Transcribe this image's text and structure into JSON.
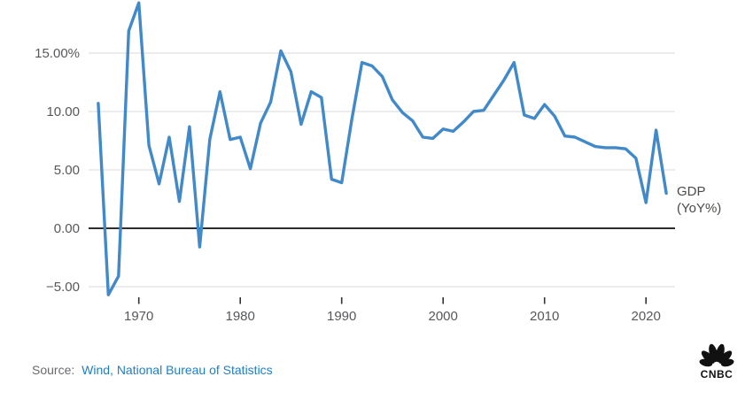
{
  "chart_data": {
    "type": "line",
    "title": "",
    "xlabel": "",
    "ylabel": "",
    "xlim": [
      1966,
      2022
    ],
    "ylim": [
      -6.5,
      19.5
    ],
    "grid": true,
    "legend_position": "right-of-line-end",
    "series_label_line1": "GDP",
    "series_label_line2": "(YoY%)",
    "x_ticks": [
      1970,
      1980,
      1990,
      2000,
      2010,
      2020
    ],
    "y_ticks": [
      {
        "value": 15,
        "label": "15.00%"
      },
      {
        "value": 10,
        "label": "10.00"
      },
      {
        "value": 5,
        "label": "5.00"
      },
      {
        "value": 0,
        "label": "0.00"
      },
      {
        "value": -5,
        "label": "−5.00"
      }
    ],
    "series": [
      {
        "name": "GDP (YoY%)",
        "x": [
          1966,
          1967,
          1968,
          1969,
          1970,
          1971,
          1972,
          1973,
          1974,
          1975,
          1976,
          1977,
          1978,
          1979,
          1980,
          1981,
          1982,
          1983,
          1984,
          1985,
          1986,
          1987,
          1988,
          1989,
          1990,
          1991,
          1992,
          1993,
          1994,
          1995,
          1996,
          1997,
          1998,
          1999,
          2000,
          2001,
          2002,
          2003,
          2004,
          2005,
          2006,
          2007,
          2008,
          2009,
          2010,
          2011,
          2012,
          2013,
          2014,
          2015,
          2016,
          2017,
          2018,
          2019,
          2020,
          2021,
          2022
        ],
        "values": [
          10.7,
          -5.7,
          -4.1,
          16.9,
          19.3,
          7.1,
          3.8,
          7.8,
          2.3,
          8.7,
          -1.6,
          7.6,
          11.7,
          7.6,
          7.8,
          5.1,
          9.0,
          10.8,
          15.2,
          13.4,
          8.9,
          11.7,
          11.2,
          4.2,
          3.9,
          9.3,
          14.2,
          13.9,
          13.0,
          11.0,
          9.9,
          9.2,
          7.8,
          7.7,
          8.5,
          8.3,
          9.1,
          10.0,
          10.1,
          11.4,
          12.7,
          14.2,
          9.7,
          9.4,
          10.6,
          9.6,
          7.9,
          7.8,
          7.4,
          7.0,
          6.9,
          6.9,
          6.8,
          6.0,
          2.2,
          8.4,
          3.0
        ]
      }
    ],
    "colors": {
      "line": "#4289c9",
      "grid": "#d9d9d9",
      "zero_line": "#2d2d2d",
      "tick_mark": "#333333",
      "axis_text": "#57585b",
      "series_label": "#4a4a48",
      "source_text": "#6a6b6e",
      "source_link": "#1f7ec8",
      "logo": "#111111"
    }
  },
  "footer": {
    "source_prefix": "Source:",
    "source_link": "Wind, National Bureau of Statistics"
  },
  "logo": {
    "name": "CNBC",
    "wordmark": "CNBC"
  }
}
